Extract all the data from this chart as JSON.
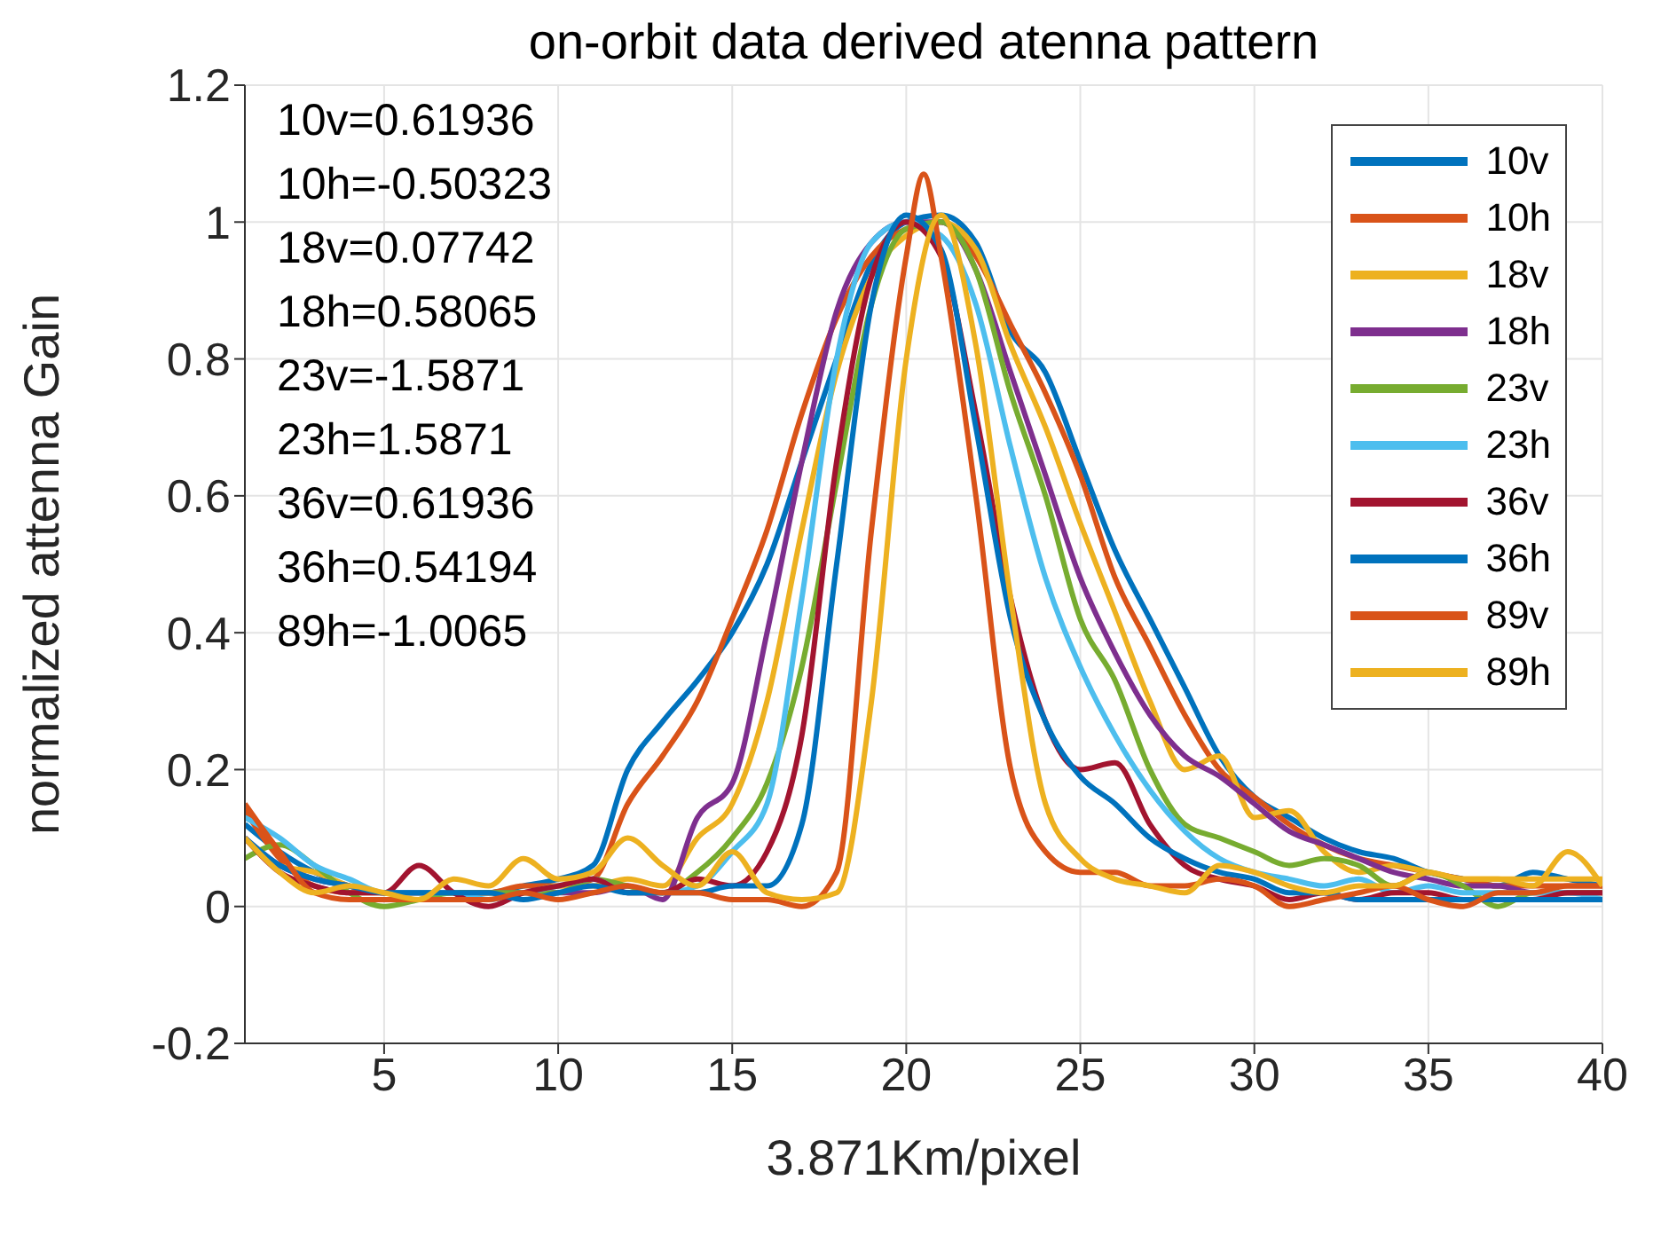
{
  "chart_data": {
    "type": "line",
    "title": "on-orbit data derived atenna pattern",
    "xlabel": "3.871Km/pixel",
    "ylabel": "normalized attenna Gain",
    "xlim": [
      1,
      40
    ],
    "xticks": [
      5,
      10,
      15,
      20,
      25,
      30,
      35,
      40
    ],
    "ylim": [
      -0.2,
      1.2
    ],
    "yticks": [
      -0.2,
      0,
      0.2,
      0.4,
      0.6,
      0.8,
      1,
      1.2
    ],
    "grid": true,
    "legend": "top right",
    "marker": "none",
    "line_style": "solid",
    "annotations": [
      "10v=0.61936",
      "10h=-0.50323",
      "18v=0.07742",
      "18h=0.58065",
      "23v=-1.5871",
      "23h=1.5871",
      "36v=0.61936",
      "36h=0.54194",
      "89h=-1.0065"
    ],
    "x": [
      1,
      2,
      3,
      4,
      5,
      6,
      7,
      8,
      9,
      10,
      11,
      12,
      13,
      14,
      15,
      16,
      17,
      18,
      19,
      20,
      21,
      22,
      23,
      24,
      25,
      26,
      27,
      28,
      29,
      30,
      31,
      32,
      33,
      34,
      35,
      36,
      37,
      38,
      39,
      40
    ],
    "series": [
      {
        "name": "10v",
        "color": "#0072bd",
        "values": [
          0.12,
          0.08,
          0.05,
          0.03,
          0.02,
          0.02,
          0.02,
          0.02,
          0.03,
          0.04,
          0.06,
          0.2,
          0.27,
          0.33,
          0.4,
          0.5,
          0.65,
          0.8,
          0.94,
          1.0,
          1.01,
          0.97,
          0.84,
          0.78,
          0.65,
          0.52,
          0.42,
          0.32,
          0.22,
          0.16,
          0.13,
          0.1,
          0.08,
          0.07,
          0.05,
          0.04,
          0.03,
          0.05,
          0.04,
          0.03
        ]
      },
      {
        "name": "10h",
        "color": "#d95319",
        "values": [
          0.14,
          0.07,
          0.03,
          0.02,
          0.02,
          0.02,
          0.02,
          0.02,
          0.03,
          0.03,
          0.04,
          0.15,
          0.22,
          0.3,
          0.42,
          0.55,
          0.72,
          0.86,
          0.95,
          0.99,
          1.0,
          0.95,
          0.85,
          0.75,
          0.63,
          0.48,
          0.38,
          0.28,
          0.2,
          0.16,
          0.12,
          0.09,
          0.07,
          0.06,
          0.05,
          0.04,
          0.03,
          0.03,
          0.03,
          0.03
        ]
      },
      {
        "name": "18v",
        "color": "#edb120",
        "values": [
          0.1,
          0.06,
          0.05,
          0.03,
          0.02,
          0.02,
          0.02,
          0.02,
          0.02,
          0.03,
          0.03,
          0.04,
          0.03,
          0.1,
          0.15,
          0.3,
          0.55,
          0.78,
          0.92,
          0.98,
          1.0,
          0.96,
          0.82,
          0.7,
          0.56,
          0.43,
          0.3,
          0.2,
          0.22,
          0.13,
          0.14,
          0.08,
          0.05,
          0.06,
          0.05,
          0.04,
          0.04,
          0.04,
          0.04,
          0.04
        ]
      },
      {
        "name": "18h",
        "color": "#7e2f8e",
        "values": [
          0.1,
          0.06,
          0.04,
          0.03,
          0.02,
          0.02,
          0.02,
          0.02,
          0.02,
          0.02,
          0.02,
          0.03,
          0.01,
          0.13,
          0.18,
          0.4,
          0.65,
          0.87,
          0.97,
          1.0,
          1.0,
          0.93,
          0.78,
          0.63,
          0.48,
          0.37,
          0.28,
          0.22,
          0.19,
          0.15,
          0.11,
          0.09,
          0.07,
          0.05,
          0.04,
          0.03,
          0.03,
          0.02,
          0.02,
          0.02
        ]
      },
      {
        "name": "23v",
        "color": "#77ac30",
        "values": [
          0.07,
          0.09,
          0.06,
          0.02,
          0.0,
          0.01,
          0.02,
          0.02,
          0.02,
          0.02,
          0.04,
          0.03,
          0.02,
          0.05,
          0.1,
          0.18,
          0.35,
          0.62,
          0.88,
          0.99,
          1.0,
          0.93,
          0.75,
          0.6,
          0.42,
          0.33,
          0.2,
          0.12,
          0.1,
          0.08,
          0.06,
          0.07,
          0.06,
          0.03,
          0.05,
          0.03,
          0.0,
          0.02,
          0.02,
          0.02
        ]
      },
      {
        "name": "23h",
        "color": "#4dbeee",
        "values": [
          0.13,
          0.1,
          0.06,
          0.04,
          0.02,
          0.02,
          0.02,
          0.01,
          0.02,
          0.03,
          0.04,
          0.02,
          0.02,
          0.03,
          0.08,
          0.15,
          0.45,
          0.8,
          0.97,
          1.0,
          0.98,
          0.88,
          0.67,
          0.48,
          0.35,
          0.25,
          0.17,
          0.11,
          0.07,
          0.05,
          0.04,
          0.03,
          0.04,
          0.02,
          0.03,
          0.02,
          0.02,
          0.02,
          0.02,
          0.01
        ]
      },
      {
        "name": "36v",
        "color": "#a2142f",
        "values": [
          0.1,
          0.05,
          0.03,
          0.02,
          0.02,
          0.06,
          0.02,
          0.0,
          0.02,
          0.03,
          0.04,
          0.02,
          0.02,
          0.04,
          0.03,
          0.08,
          0.25,
          0.65,
          0.92,
          1.0,
          0.95,
          0.72,
          0.45,
          0.27,
          0.2,
          0.21,
          0.12,
          0.06,
          0.04,
          0.03,
          0.01,
          0.02,
          0.01,
          0.02,
          0.02,
          0.01,
          0.01,
          0.01,
          0.02,
          0.02
        ]
      },
      {
        "name": "36h",
        "color": "#0072bd",
        "values": [
          0.1,
          0.06,
          0.04,
          0.03,
          0.02,
          0.02,
          0.02,
          0.02,
          0.01,
          0.02,
          0.03,
          0.02,
          0.02,
          0.02,
          0.03,
          0.03,
          0.12,
          0.5,
          0.88,
          1.01,
          0.96,
          0.7,
          0.42,
          0.27,
          0.19,
          0.15,
          0.1,
          0.07,
          0.05,
          0.04,
          0.02,
          0.02,
          0.01,
          0.01,
          0.01,
          0.01,
          0.01,
          0.01,
          0.01,
          0.01
        ]
      },
      {
        "name": "89v",
        "color": "#d95319",
        "x": [
          1,
          2,
          3,
          4,
          5,
          6,
          7,
          8,
          9,
          10,
          11,
          12,
          13,
          14,
          15,
          16,
          17,
          18,
          19,
          20,
          20.5,
          21,
          22,
          23,
          24,
          25,
          26,
          27,
          28,
          29,
          30,
          31,
          32,
          33,
          34,
          35,
          36,
          37,
          38,
          39,
          40
        ],
        "values": [
          0.15,
          0.08,
          0.02,
          0.01,
          0.01,
          0.01,
          0.01,
          0.01,
          0.02,
          0.01,
          0.02,
          0.03,
          0.02,
          0.02,
          0.01,
          0.01,
          0.0,
          0.05,
          0.55,
          0.95,
          1.07,
          0.95,
          0.6,
          0.2,
          0.08,
          0.05,
          0.05,
          0.03,
          0.03,
          0.04,
          0.03,
          0.0,
          0.01,
          0.02,
          0.03,
          0.01,
          0.0,
          0.02,
          0.02,
          0.03,
          0.03
        ]
      },
      {
        "name": "89h",
        "color": "#edb120",
        "values": [
          0.1,
          0.05,
          0.02,
          0.03,
          0.02,
          0.01,
          0.04,
          0.03,
          0.07,
          0.04,
          0.05,
          0.1,
          0.06,
          0.03,
          0.08,
          0.02,
          0.01,
          0.02,
          0.3,
          0.8,
          1.01,
          0.82,
          0.45,
          0.15,
          0.07,
          0.04,
          0.03,
          0.02,
          0.06,
          0.05,
          0.03,
          0.02,
          0.03,
          0.03,
          0.05,
          0.04,
          0.04,
          0.03,
          0.08,
          0.03
        ]
      }
    ]
  }
}
